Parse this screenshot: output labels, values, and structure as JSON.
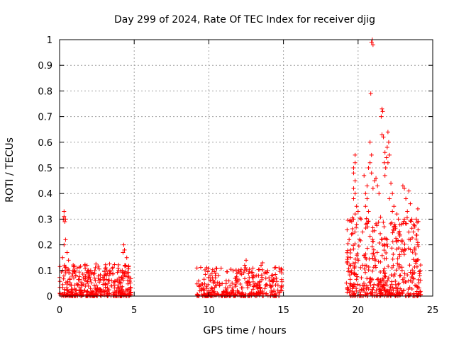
{
  "chart_data": {
    "type": "scatter",
    "title": "Day 299 of 2024, Rate Of TEC Index for receiver djig",
    "xlabel": "GPS time / hours",
    "ylabel": "ROTI / TECUs",
    "xlim": [
      0,
      25
    ],
    "ylim": [
      0,
      1
    ],
    "xticks": [
      "0",
      "5",
      "10",
      "15",
      "20",
      "25"
    ],
    "yticks": [
      "0",
      "0.1",
      "0.2",
      "0.3",
      "0.4",
      "0.5",
      "0.6",
      "0.7",
      "0.8",
      "0.9",
      "1"
    ],
    "grid": true,
    "marker": "+",
    "series": [
      {
        "color": "#ff0000",
        "clusters": [
          {
            "x": [
              0.0,
              4.8
            ],
            "base": [
              0.0,
              0.09
            ],
            "count": 420
          },
          {
            "x": [
              9.2,
              14.9
            ],
            "base": [
              0.0,
              0.08
            ],
            "count": 360
          },
          {
            "x": [
              19.2,
              24.2
            ],
            "base": [
              0.0,
              0.22
            ],
            "count": 460
          }
        ],
        "points": [
          [
            0.3,
            0.33
          ],
          [
            0.3,
            0.31
          ],
          [
            0.35,
            0.29
          ],
          [
            0.4,
            0.3
          ],
          [
            0.25,
            0.3
          ],
          [
            0.4,
            0.22
          ],
          [
            0.3,
            0.2
          ],
          [
            0.5,
            0.17
          ],
          [
            0.2,
            0.15
          ],
          [
            0.6,
            0.14
          ],
          [
            4.3,
            0.2
          ],
          [
            4.35,
            0.18
          ],
          [
            4.25,
            0.17
          ],
          [
            4.5,
            0.15
          ],
          [
            4.4,
            0.12
          ],
          [
            4.2,
            0.1
          ],
          [
            12.5,
            0.14
          ],
          [
            12.4,
            0.12
          ],
          [
            13.6,
            0.13
          ],
          [
            13.5,
            0.12
          ],
          [
            12.0,
            0.1
          ],
          [
            14.7,
            0.11
          ],
          [
            19.4,
            0.22
          ],
          [
            19.5,
            0.18
          ],
          [
            19.5,
            0.15
          ],
          [
            19.3,
            0.13
          ],
          [
            19.7,
            0.5
          ],
          [
            19.8,
            0.55
          ],
          [
            19.8,
            0.52
          ],
          [
            19.7,
            0.48
          ],
          [
            19.8,
            0.45
          ],
          [
            19.7,
            0.42
          ],
          [
            19.8,
            0.4
          ],
          [
            19.7,
            0.38
          ],
          [
            19.9,
            0.35
          ],
          [
            19.8,
            0.32
          ],
          [
            19.9,
            0.28
          ],
          [
            19.7,
            0.3
          ],
          [
            20.0,
            0.33
          ],
          [
            20.2,
            0.3
          ],
          [
            20.3,
            0.25
          ],
          [
            20.1,
            0.22
          ],
          [
            20.4,
            0.47
          ],
          [
            20.6,
            0.43
          ],
          [
            20.5,
            0.4
          ],
          [
            20.6,
            0.38
          ],
          [
            20.7,
            0.33
          ],
          [
            20.5,
            0.35
          ],
          [
            20.8,
            0.6
          ],
          [
            20.9,
            0.55
          ],
          [
            20.8,
            0.52
          ],
          [
            20.7,
            0.5
          ],
          [
            20.9,
            0.48
          ],
          [
            20.95,
            1.0
          ],
          [
            20.9,
            0.99
          ],
          [
            21.0,
            0.98
          ],
          [
            20.85,
            0.79
          ],
          [
            21.2,
            0.46
          ],
          [
            21.3,
            0.43
          ],
          [
            21.1,
            0.45
          ],
          [
            21.0,
            0.42
          ],
          [
            21.4,
            0.4
          ],
          [
            21.6,
            0.73
          ],
          [
            21.65,
            0.72
          ],
          [
            21.55,
            0.7
          ],
          [
            21.7,
            0.62
          ],
          [
            21.6,
            0.63
          ],
          [
            21.8,
            0.56
          ],
          [
            21.9,
            0.54
          ],
          [
            21.75,
            0.52
          ],
          [
            21.85,
            0.5
          ],
          [
            21.8,
            0.47
          ],
          [
            22.0,
            0.64
          ],
          [
            22.05,
            0.6
          ],
          [
            21.95,
            0.58
          ],
          [
            22.1,
            0.55
          ],
          [
            22.0,
            0.52
          ],
          [
            22.2,
            0.44
          ],
          [
            22.3,
            0.4
          ],
          [
            22.1,
            0.38
          ],
          [
            22.4,
            0.35
          ],
          [
            22.3,
            0.33
          ],
          [
            22.6,
            0.32
          ],
          [
            22.7,
            0.3
          ],
          [
            22.9,
            0.28
          ],
          [
            23.1,
            0.3
          ],
          [
            23.3,
            0.33
          ],
          [
            23.0,
            0.43
          ],
          [
            23.1,
            0.42
          ],
          [
            23.4,
            0.41
          ],
          [
            23.2,
            0.38
          ],
          [
            23.5,
            0.36
          ],
          [
            23.6,
            0.3
          ],
          [
            23.8,
            0.27
          ],
          [
            24.0,
            0.34
          ],
          [
            23.9,
            0.3
          ],
          [
            23.7,
            0.25
          ],
          [
            24.0,
            0.2
          ],
          [
            23.8,
            0.18
          ],
          [
            23.5,
            0.22
          ],
          [
            22.8,
            0.24
          ],
          [
            22.5,
            0.27
          ]
        ]
      }
    ]
  }
}
